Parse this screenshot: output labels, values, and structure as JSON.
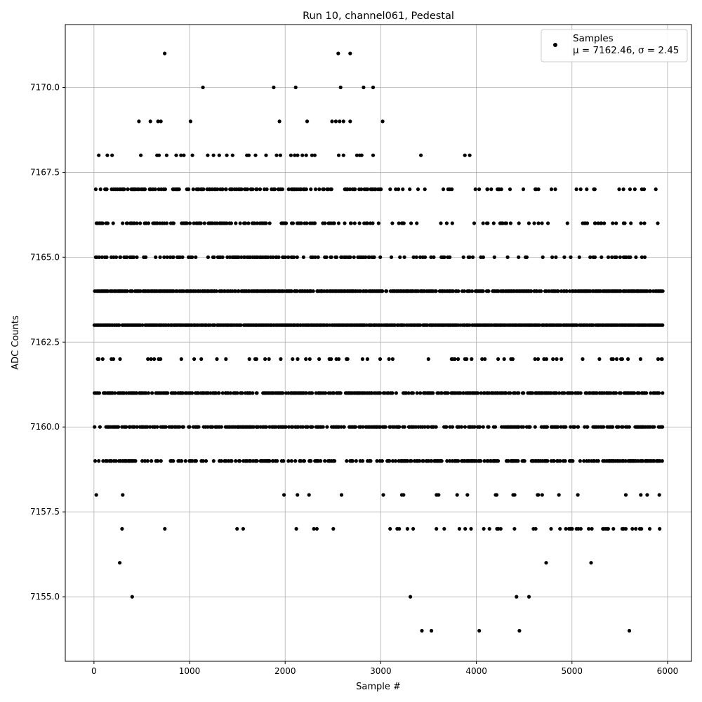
{
  "chart_data": {
    "type": "scatter",
    "title": "Run 10, channel061, Pedestal",
    "xlabel": "Sample #",
    "ylabel": "ADC Counts",
    "xlim": [
      -300,
      6250
    ],
    "ylim": [
      7153.1,
      7171.85
    ],
    "x_ticks": [
      0,
      1000,
      2000,
      3000,
      4000,
      5000,
      6000
    ],
    "x_tick_labels": [
      "0",
      "1000",
      "2000",
      "3000",
      "4000",
      "5000",
      "6000"
    ],
    "y_ticks": [
      7155.0,
      7157.5,
      7160.0,
      7162.5,
      7165.0,
      7167.5,
      7170.0
    ],
    "y_tick_labels": [
      "7155.0",
      "7157.5",
      "7160.0",
      "7162.5",
      "7165.0",
      "7167.5",
      "7170.0"
    ],
    "grid": true,
    "legend_position": "top-right",
    "marker_color": "#000000",
    "series": [
      {
        "name": "Samples",
        "legend_stats": "μ = 7162.46, σ = 2.45"
      }
    ],
    "sample_count": 5950,
    "mean": 7162.46,
    "std": 2.45,
    "points": [
      [
        740,
        7171
      ],
      [
        2555,
        7171
      ],
      [
        2680,
        7171
      ],
      [
        1140,
        7170
      ],
      [
        1880,
        7170
      ],
      [
        2110,
        7170
      ],
      [
        2580,
        7170
      ],
      [
        2820,
        7170
      ],
      [
        2920,
        7170
      ],
      [
        470,
        7169
      ],
      [
        590,
        7169
      ],
      [
        670,
        7169
      ],
      [
        700,
        7169
      ],
      [
        1010,
        7169
      ],
      [
        1940,
        7169
      ],
      [
        2230,
        7169
      ],
      [
        2490,
        7169
      ],
      [
        2530,
        7169
      ],
      [
        2570,
        7169
      ],
      [
        2610,
        7169
      ],
      [
        2680,
        7169
      ],
      [
        3020,
        7169
      ],
      [
        50,
        7168
      ],
      [
        140,
        7168
      ],
      [
        190,
        7168
      ],
      [
        490,
        7168
      ],
      [
        660,
        7168
      ],
      [
        680,
        7168
      ],
      [
        760,
        7168
      ],
      [
        860,
        7168
      ],
      [
        910,
        7168
      ],
      [
        940,
        7168
      ],
      [
        1030,
        7168
      ],
      [
        1190,
        7168
      ],
      [
        1250,
        7168
      ],
      [
        1310,
        7168
      ],
      [
        1390,
        7168
      ],
      [
        1450,
        7168
      ],
      [
        1600,
        7168
      ],
      [
        1620,
        7168
      ],
      [
        1690,
        7168
      ],
      [
        1800,
        7168
      ],
      [
        1910,
        7168
      ],
      [
        1950,
        7168
      ],
      [
        2060,
        7168
      ],
      [
        2100,
        7168
      ],
      [
        2130,
        7168
      ],
      [
        2180,
        7168
      ],
      [
        2220,
        7168
      ],
      [
        2280,
        7168
      ],
      [
        2310,
        7168
      ],
      [
        2560,
        7168
      ],
      [
        2610,
        7168
      ],
      [
        2750,
        7168
      ],
      [
        2780,
        7168
      ],
      [
        2800,
        7168
      ],
      [
        2920,
        7168
      ],
      [
        3420,
        7168
      ],
      [
        3880,
        7168
      ],
      [
        3930,
        7168
      ],
      [
        5600,
        7154
      ],
      [
        3430,
        7154
      ],
      [
        3530,
        7154
      ],
      [
        4030,
        7154
      ],
      [
        4450,
        7154
      ],
      [
        400,
        7155
      ],
      [
        3310,
        7155
      ],
      [
        4420,
        7155
      ],
      [
        4550,
        7155
      ],
      [
        270,
        7156
      ],
      [
        4730,
        7156
      ],
      [
        5200,
        7156
      ]
    ],
    "dense_rows": [
      {
        "y": 7167,
        "density": 0.55,
        "sparse_from": 3000,
        "sparse_density": 0.18
      },
      {
        "y": 7166,
        "density": 0.45,
        "sparse_from": 3000,
        "sparse_density": 0.16
      },
      {
        "y": 7165,
        "density": 0.4,
        "sparse_from": 3000,
        "sparse_density": 0.22
      },
      {
        "y": 7164,
        "density": 0.85,
        "sparse_from": 6000,
        "sparse_density": 0.85
      },
      {
        "y": 7163,
        "density": 0.95,
        "sparse_from": 6000,
        "sparse_density": 0.95
      },
      {
        "y": 7162,
        "density": 0.12,
        "sparse_from": 6000,
        "sparse_density": 0.12
      },
      {
        "y": 7161,
        "density": 0.7,
        "sparse_from": 6000,
        "sparse_density": 0.7
      },
      {
        "y": 7160,
        "density": 0.6,
        "sparse_from": 6000,
        "sparse_density": 0.6
      },
      {
        "y": 7159,
        "density": 0.45,
        "sparse_from": 2950,
        "sparse_density": 0.6
      },
      {
        "y": 7158,
        "density": 0.03,
        "sparse_from": 2950,
        "sparse_density": 0.1
      },
      {
        "y": 7157,
        "density": 0.03,
        "sparse_from": 3050,
        "sparse_density": 0.2
      }
    ]
  }
}
